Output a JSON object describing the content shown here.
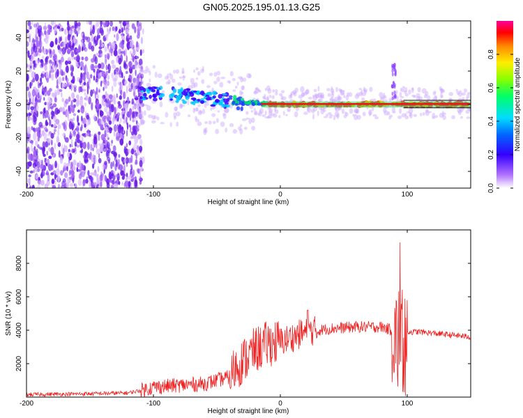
{
  "title": "GN05.2025.195.01.13.G25",
  "chart_data": [
    {
      "type": "heatmap",
      "xlabel": "Height of straight line (km)",
      "ylabel": "Frequency (Hz)",
      "xlim": [
        -200,
        150
      ],
      "ylim": [
        -50,
        50
      ],
      "x_ticks": [
        -200,
        -100,
        0,
        100
      ],
      "y_ticks": [
        -40,
        -20,
        0,
        20,
        40
      ],
      "colorbar": {
        "label": "Normalized spectral amplitude",
        "range": [
          0,
          1
        ],
        "ticks": [
          0.0,
          0.2,
          0.4,
          0.6,
          0.8
        ]
      },
      "ridge": {
        "description_x": [
          -110,
          -90,
          -70,
          -50,
          -30,
          -15,
          0,
          50,
          88,
          95,
          100,
          150
        ],
        "frequency_hz": [
          7,
          6,
          5,
          3,
          1,
          0.5,
          0,
          0,
          0.5,
          0,
          0,
          0
        ],
        "peak_amplitude": [
          0.35,
          0.4,
          0.45,
          0.5,
          0.6,
          0.8,
          0.9,
          1.0,
          0.9,
          0.4,
          1.0,
          1.0
        ]
      }
    },
    {
      "type": "line",
      "xlabel": "Height of straight line (km)",
      "ylabel": "SNR (10 * v/v)",
      "xlim": [
        -200,
        150
      ],
      "ylim": [
        0,
        10000
      ],
      "x_ticks": [
        -200,
        -100,
        0,
        100
      ],
      "y_ticks": [
        2000,
        4000,
        6000,
        8000
      ],
      "series": [
        {
          "color": "#ee2222",
          "x": [
            -200,
            -150,
            -120,
            -110,
            -100,
            -80,
            -60,
            -40,
            -35,
            -20,
            -10,
            0,
            20,
            40,
            60,
            80,
            88,
            92,
            95,
            97,
            100,
            110,
            150
          ],
          "y": [
            150,
            200,
            250,
            400,
            600,
            700,
            800,
            1200,
            1800,
            2800,
            3200,
            3300,
            3900,
            4100,
            4200,
            4200,
            4000,
            3000,
            5000,
            3000,
            3900,
            3900,
            3600
          ]
        }
      ]
    }
  ]
}
